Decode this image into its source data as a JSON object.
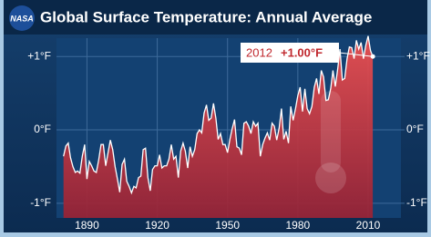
{
  "chart_data": {
    "type": "area",
    "logo": "NASA",
    "title": "Global Surface Temperature: Annual Average",
    "x": [
      1880,
      1881,
      1882,
      1883,
      1884,
      1885,
      1886,
      1887,
      1888,
      1889,
      1890,
      1891,
      1892,
      1893,
      1894,
      1895,
      1896,
      1897,
      1898,
      1899,
      1900,
      1901,
      1902,
      1903,
      1904,
      1905,
      1906,
      1907,
      1908,
      1909,
      1910,
      1911,
      1912,
      1913,
      1914,
      1915,
      1916,
      1917,
      1918,
      1919,
      1920,
      1921,
      1922,
      1923,
      1924,
      1925,
      1926,
      1927,
      1928,
      1929,
      1930,
      1931,
      1932,
      1933,
      1934,
      1935,
      1936,
      1937,
      1938,
      1939,
      1940,
      1941,
      1942,
      1943,
      1944,
      1945,
      1946,
      1947,
      1948,
      1949,
      1950,
      1951,
      1952,
      1953,
      1954,
      1955,
      1956,
      1957,
      1958,
      1959,
      1960,
      1961,
      1962,
      1963,
      1964,
      1965,
      1966,
      1967,
      1968,
      1969,
      1970,
      1971,
      1972,
      1973,
      1974,
      1975,
      1976,
      1977,
      1978,
      1979,
      1980,
      1981,
      1982,
      1983,
      1984,
      1985,
      1986,
      1987,
      1988,
      1989,
      1990,
      1991,
      1992,
      1993,
      1994,
      1995,
      1996,
      1997,
      1998,
      1999,
      2000,
      2001,
      2002,
      2003,
      2004,
      2005,
      2006,
      2007,
      2008,
      2009,
      2010,
      2011,
      2012
    ],
    "values": [
      -0.36,
      -0.22,
      -0.18,
      -0.38,
      -0.5,
      -0.58,
      -0.56,
      -0.59,
      -0.36,
      -0.2,
      -0.67,
      -0.43,
      -0.49,
      -0.56,
      -0.58,
      -0.41,
      -0.2,
      -0.2,
      -0.49,
      -0.31,
      -0.14,
      -0.27,
      -0.5,
      -0.67,
      -0.85,
      -0.47,
      -0.4,
      -0.7,
      -0.77,
      -0.86,
      -0.77,
      -0.79,
      -0.65,
      -0.63,
      -0.27,
      -0.25,
      -0.65,
      -0.83,
      -0.54,
      -0.49,
      -0.49,
      -0.34,
      -0.52,
      -0.49,
      -0.49,
      -0.4,
      -0.2,
      -0.4,
      -0.36,
      -0.65,
      -0.29,
      -0.18,
      -0.29,
      -0.52,
      -0.23,
      -0.36,
      -0.27,
      -0.05,
      0,
      -0.04,
      0.23,
      0.34,
      0.13,
      0.16,
      0.36,
      0.16,
      -0.13,
      -0.05,
      -0.2,
      -0.2,
      -0.31,
      -0.13,
      0.02,
      0.14,
      -0.23,
      -0.25,
      -0.34,
      0.09,
      0.11,
      0.05,
      -0.05,
      0.11,
      0.05,
      0.09,
      -0.36,
      -0.2,
      -0.11,
      -0.04,
      -0.14,
      0.09,
      0.05,
      -0.14,
      0.02,
      0.29,
      -0.13,
      -0.02,
      -0.18,
      0.32,
      0.13,
      0.29,
      0.47,
      0.58,
      0.25,
      0.56,
      0.29,
      0.22,
      0.32,
      0.58,
      0.7,
      0.49,
      0.81,
      0.72,
      0.4,
      0.41,
      0.56,
      0.81,
      0.59,
      0.83,
      1.1,
      0.68,
      0.7,
      0.97,
      1.13,
      1.12,
      0.97,
      1.22,
      1.1,
      1.19,
      0.97,
      1.15,
      1.28,
      1.08,
      1.0
    ],
    "color": "#e8403f",
    "line_color": "#ffffff",
    "xlim": [
      1877,
      2024
    ],
    "xticks": [
      1890,
      1920,
      1950,
      1980,
      2010
    ],
    "ylim": [
      -1.2,
      1.25
    ],
    "yticks": [
      {
        "value": -1,
        "label": "-1°F"
      },
      {
        "value": 0,
        "label": "0°F"
      },
      {
        "value": 1,
        "label": "+1°F"
      }
    ],
    "y2lim": [
      -1.2,
      1.25
    ],
    "y2ticks": [
      {
        "value": -1,
        "label": "-1°F"
      },
      {
        "value": 0,
        "label": "0°F"
      },
      {
        "value": 1,
        "label": "+1°F"
      }
    ],
    "grid": true,
    "annotation": {
      "year": "2012",
      "value_label": "+1.00°F"
    }
  }
}
